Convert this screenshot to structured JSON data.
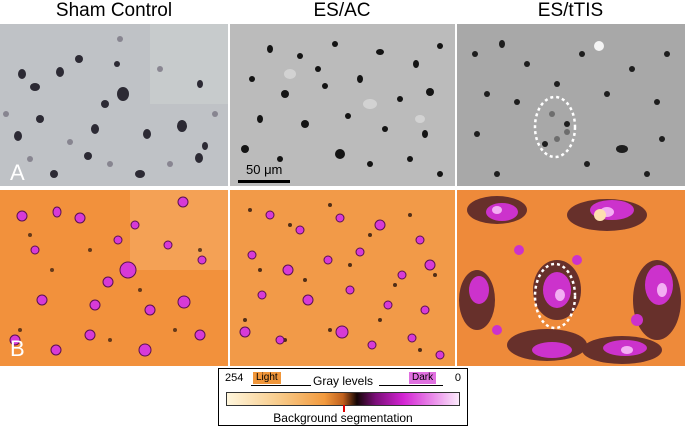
{
  "columns": [
    {
      "title": "Sham Control"
    },
    {
      "title": "ES/AC"
    },
    {
      "title": "ES/tTIS"
    }
  ],
  "rows": [
    {
      "label": "A"
    },
    {
      "label": "B"
    }
  ],
  "scale_bar": {
    "label": "50 μm"
  },
  "legend": {
    "title": "Gray levels",
    "left_value": "254",
    "right_value": "0",
    "light_label": "Light",
    "dark_label": "Dark",
    "segmentation_label": "Background segmentation",
    "colors": {
      "light_tag": "#f0963a",
      "dark_tag": "#e070e0",
      "marker": "#e00000"
    }
  }
}
